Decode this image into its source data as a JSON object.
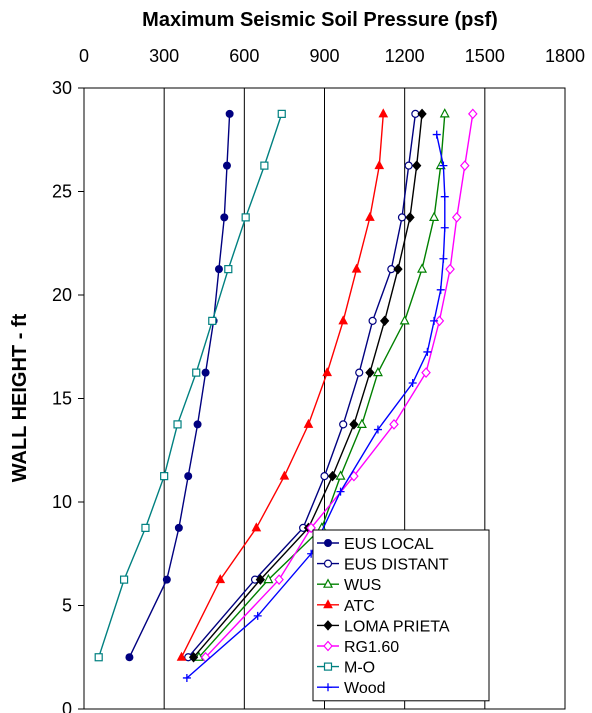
{
  "chart_data": {
    "type": "line",
    "title": "Maximum Seismic Soil Pressure (psf)",
    "xlabel": "",
    "ylabel": "WALL HEIGHT - ft",
    "xlim": [
      0,
      1800
    ],
    "ylim": [
      0,
      30
    ],
    "xticks": [
      "0",
      "300",
      "600",
      "900",
      "1200",
      "1500",
      "1800"
    ],
    "yticks": [
      "0",
      "5",
      "10",
      "15",
      "20",
      "25",
      "30"
    ],
    "x_axis_position": "top",
    "grid": "vertical lines at x ticks",
    "legend_position": "bottom-right inside",
    "series": [
      {
        "name": "EUS LOCAL",
        "color": "#000080",
        "marker": "circle-filled",
        "points": [
          [
            170,
            2.5
          ],
          [
            310,
            6.25
          ],
          [
            355,
            8.75
          ],
          [
            390,
            11.25
          ],
          [
            425,
            13.75
          ],
          [
            455,
            16.25
          ],
          [
            485,
            18.75
          ],
          [
            505,
            21.25
          ],
          [
            525,
            23.75
          ],
          [
            535,
            26.25
          ],
          [
            545,
            28.75
          ]
        ]
      },
      {
        "name": "EUS DISTANT",
        "color": "#000080",
        "marker": "circle-open",
        "points": [
          [
            390,
            2.5
          ],
          [
            640,
            6.25
          ],
          [
            820,
            8.75
          ],
          [
            900,
            11.25
          ],
          [
            970,
            13.75
          ],
          [
            1030,
            16.25
          ],
          [
            1080,
            18.75
          ],
          [
            1150,
            21.25
          ],
          [
            1190,
            23.75
          ],
          [
            1215,
            26.25
          ],
          [
            1240,
            28.75
          ]
        ]
      },
      {
        "name": "WUS",
        "color": "#008000",
        "marker": "triangle-open",
        "points": [
          [
            430,
            2.5
          ],
          [
            690,
            6.25
          ],
          [
            890,
            8.75
          ],
          [
            960,
            11.25
          ],
          [
            1040,
            13.75
          ],
          [
            1100,
            16.25
          ],
          [
            1200,
            18.75
          ],
          [
            1265,
            21.25
          ],
          [
            1310,
            23.75
          ],
          [
            1335,
            26.25
          ],
          [
            1350,
            28.75
          ]
        ]
      },
      {
        "name": "ATC",
        "color": "#FF0000",
        "marker": "triangle-filled",
        "points": [
          [
            365,
            2.5
          ],
          [
            510,
            6.25
          ],
          [
            645,
            8.75
          ],
          [
            750,
            11.25
          ],
          [
            840,
            13.75
          ],
          [
            910,
            16.25
          ],
          [
            970,
            18.75
          ],
          [
            1020,
            21.25
          ],
          [
            1070,
            23.75
          ],
          [
            1105,
            26.25
          ],
          [
            1120,
            28.75
          ]
        ]
      },
      {
        "name": "LOMA PRIETA",
        "color": "#000000",
        "marker": "diamond-filled",
        "points": [
          [
            410,
            2.5
          ],
          [
            660,
            6.25
          ],
          [
            840,
            8.75
          ],
          [
            930,
            11.25
          ],
          [
            1010,
            13.75
          ],
          [
            1070,
            16.25
          ],
          [
            1125,
            18.75
          ],
          [
            1175,
            21.25
          ],
          [
            1220,
            23.75
          ],
          [
            1245,
            26.25
          ],
          [
            1265,
            28.75
          ]
        ]
      },
      {
        "name": "RG1.60",
        "color": "#FF00FF",
        "marker": "diamond-open",
        "points": [
          [
            455,
            2.5
          ],
          [
            730,
            6.25
          ],
          [
            850,
            8.75
          ],
          [
            1010,
            11.25
          ],
          [
            1160,
            13.75
          ],
          [
            1280,
            16.25
          ],
          [
            1330,
            18.75
          ],
          [
            1370,
            21.25
          ],
          [
            1395,
            23.75
          ],
          [
            1425,
            26.25
          ],
          [
            1455,
            28.75
          ]
        ]
      },
      {
        "name": "M-O",
        "color": "#008080",
        "marker": "square-open",
        "points": [
          [
            55,
            2.5
          ],
          [
            150,
            6.25
          ],
          [
            230,
            8.75
          ],
          [
            300,
            11.25
          ],
          [
            350,
            13.75
          ],
          [
            420,
            16.25
          ],
          [
            480,
            18.75
          ],
          [
            540,
            21.25
          ],
          [
            605,
            23.75
          ],
          [
            675,
            26.25
          ],
          [
            740,
            28.75
          ]
        ]
      },
      {
        "name": "Wood",
        "color": "#0000FF",
        "marker": "plus",
        "points": [
          [
            385,
            1.5
          ],
          [
            650,
            4.5
          ],
          [
            850,
            7.5
          ],
          [
            960,
            10.5
          ],
          [
            1100,
            13.5
          ],
          [
            1230,
            15.75
          ],
          [
            1285,
            17.25
          ],
          [
            1310,
            18.75
          ],
          [
            1335,
            20.25
          ],
          [
            1345,
            21.75
          ],
          [
            1350,
            23.25
          ],
          [
            1350,
            24.75
          ],
          [
            1345,
            26.25
          ],
          [
            1320,
            27.75
          ]
        ]
      }
    ]
  }
}
